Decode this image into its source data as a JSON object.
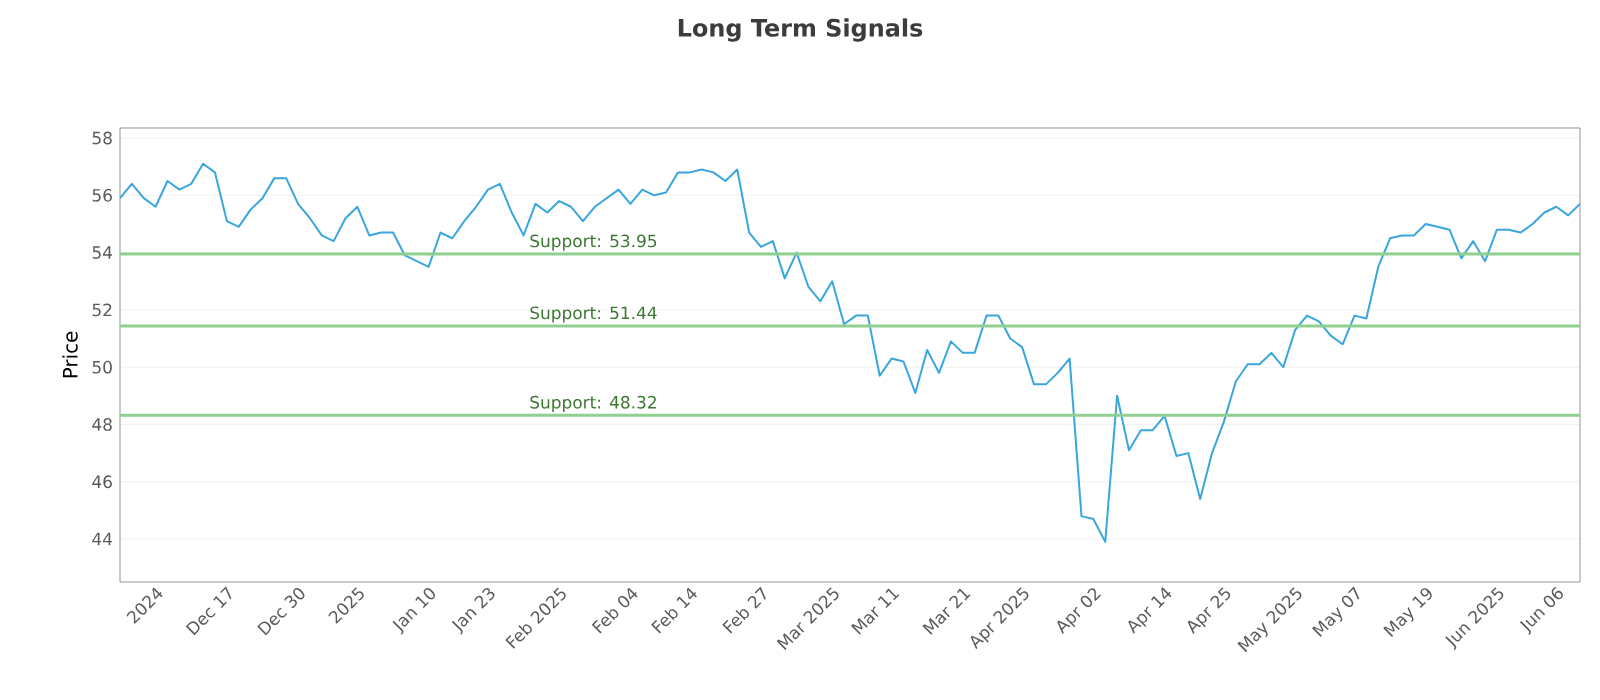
{
  "chart_data": {
    "type": "line",
    "title": "Long Term Signals",
    "ylabel": "Price",
    "categories": [
      null,
      null,
      null,
      "2024",
      null,
      null,
      null,
      null,
      null,
      "Dec 17",
      null,
      null,
      null,
      null,
      null,
      "Dec 30",
      null,
      null,
      null,
      null,
      "2025",
      null,
      null,
      null,
      null,
      null,
      "Jan 10",
      null,
      null,
      null,
      null,
      "Jan 23",
      null,
      null,
      null,
      null,
      null,
      "Feb 2025",
      null,
      null,
      null,
      null,
      null,
      "Feb 04",
      null,
      null,
      null,
      null,
      "Feb 14",
      null,
      null,
      null,
      null,
      null,
      "Feb 27",
      null,
      null,
      null,
      null,
      null,
      "Mar 2025",
      null,
      null,
      null,
      null,
      "Mar 11",
      null,
      null,
      null,
      null,
      null,
      "Mar 21",
      null,
      null,
      null,
      null,
      "Apr 2025",
      null,
      null,
      null,
      null,
      null,
      "Apr 02",
      null,
      null,
      null,
      null,
      null,
      "Apr 14",
      null,
      null,
      null,
      null,
      "Apr 25",
      null,
      null,
      null,
      null,
      null,
      "May 2025",
      null,
      null,
      null,
      null,
      "May 07",
      null,
      null,
      null,
      null,
      null,
      "May 19",
      null,
      null,
      null,
      null,
      null,
      "Jun 2025",
      null,
      null,
      null,
      null,
      "Jun 06",
      null,
      null
    ],
    "series": [
      {
        "color": "#3aa6dd",
        "values": [
          55.9,
          56.4,
          55.9,
          55.6,
          56.5,
          56.2,
          56.4,
          57.1,
          56.8,
          55.1,
          54.9,
          55.5,
          55.9,
          56.6,
          56.6,
          55.7,
          55.2,
          54.6,
          54.4,
          55.2,
          55.6,
          54.6,
          54.7,
          54.7,
          53.9,
          53.7,
          53.5,
          54.7,
          54.5,
          55.1,
          55.6,
          56.2,
          56.4,
          55.4,
          54.6,
          55.7,
          55.4,
          55.8,
          55.6,
          55.1,
          55.6,
          55.9,
          56.2,
          55.7,
          56.2,
          56.0,
          56.1,
          56.8,
          56.8,
          56.9,
          56.8,
          56.5,
          56.9,
          54.7,
          54.2,
          54.4,
          53.1,
          54.0,
          52.8,
          52.3,
          53.0,
          51.5,
          51.8,
          51.8,
          49.7,
          50.3,
          50.2,
          49.1,
          50.6,
          49.8,
          50.9,
          50.5,
          50.5,
          51.8,
          51.8,
          51.0,
          50.7,
          49.4,
          49.4,
          49.8,
          50.3,
          44.8,
          44.7,
          43.9,
          49.0,
          47.1,
          47.8,
          47.8,
          48.3,
          46.9,
          47.0,
          45.4,
          47.0,
          48.1,
          49.5,
          50.1,
          50.1,
          50.5,
          50.0,
          51.3,
          51.8,
          51.6,
          51.1,
          50.8,
          51.8,
          51.7,
          53.5,
          54.5,
          54.6,
          54.6,
          55.0,
          54.9,
          54.8,
          53.8,
          54.4,
          53.7,
          54.8,
          54.8,
          54.7,
          55.0,
          55.4,
          55.6,
          55.3,
          55.7
        ]
      }
    ],
    "ylim": [
      42.5,
      58.35
    ],
    "yticks": [
      44,
      46,
      48,
      50,
      52,
      54,
      56,
      58
    ],
    "grid": "y",
    "marker": "none",
    "line_style": "solid",
    "ref_lines": [
      {
        "axis": "y",
        "value": 53.95,
        "label": "Support: 53.95",
        "color": "#8fcf8f"
      },
      {
        "axis": "y",
        "value": 51.44,
        "label": "Support: 51.44",
        "color": "#8fcf8f"
      },
      {
        "axis": "y",
        "value": 48.32,
        "label": "Support: 48.32",
        "color": "#8fcf8f"
      }
    ]
  }
}
